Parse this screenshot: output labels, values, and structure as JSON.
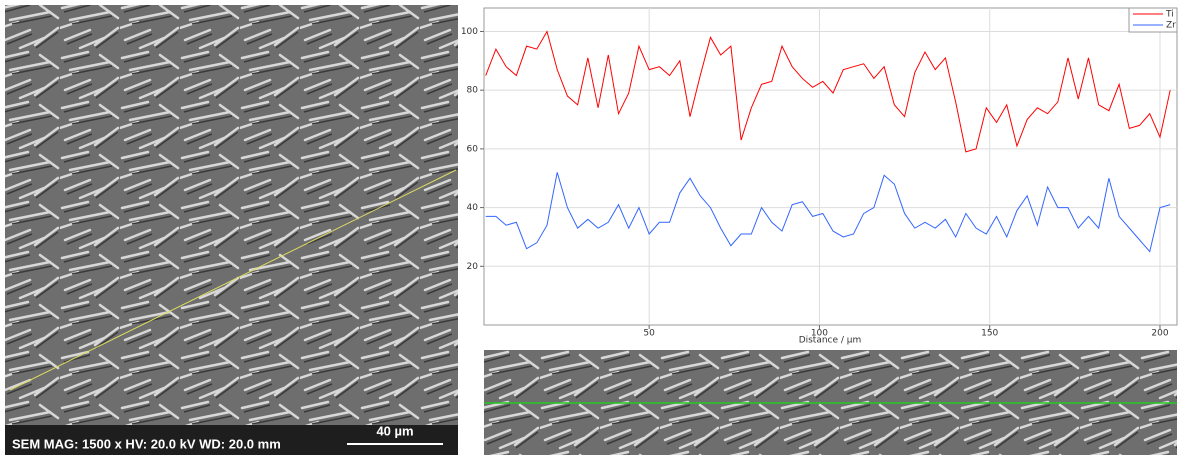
{
  "sem_image": {
    "info": "SEM  MAG: 1500 x  HV: 20.0 kV  WD: 20.0 mm",
    "scale_bar": "40 µm"
  },
  "chart_data": {
    "type": "line",
    "x_label": "Distance / µm",
    "x": [
      2,
      5,
      8,
      11,
      14,
      17,
      20,
      23,
      26,
      29,
      32,
      35,
      38,
      41,
      44,
      47,
      50,
      53,
      56,
      59,
      62,
      65,
      68,
      71,
      74,
      77,
      80,
      83,
      86,
      89,
      92,
      95,
      98,
      101,
      104,
      107,
      110,
      113,
      116,
      119,
      122,
      125,
      128,
      131,
      134,
      137,
      140,
      143,
      146,
      149,
      152,
      155,
      158,
      161,
      164,
      167,
      170,
      173,
      176,
      179,
      182,
      185,
      188,
      191,
      194,
      197,
      200,
      203
    ],
    "series": [
      {
        "name": "Ti",
        "color": "#ff0000",
        "values": [
          85,
          94,
          88,
          85,
          95,
          94,
          100,
          87,
          78,
          75,
          91,
          74,
          92,
          72,
          79,
          95,
          87,
          88,
          85,
          90,
          71,
          85,
          98,
          92,
          95,
          63,
          74,
          82,
          83,
          95,
          88,
          84,
          81,
          83,
          79,
          87,
          88,
          89,
          84,
          88,
          75,
          71,
          86,
          93,
          87,
          91,
          76,
          59,
          60,
          74,
          69,
          75,
          61,
          70,
          74,
          72,
          76,
          91,
          77,
          91,
          75,
          73,
          82,
          67,
          68,
          72,
          64,
          80
        ]
      },
      {
        "name": "Zr",
        "color": "#3366ff",
        "values": [
          37,
          37,
          34,
          35,
          26,
          28,
          34,
          52,
          40,
          33,
          36,
          33,
          35,
          41,
          33,
          40,
          31,
          35,
          35,
          45,
          50,
          44,
          40,
          33,
          27,
          31,
          31,
          40,
          35,
          32,
          41,
          42,
          37,
          38,
          32,
          30,
          31,
          38,
          40,
          51,
          48,
          38,
          33,
          35,
          33,
          36,
          30,
          38,
          33,
          31,
          37,
          30,
          39,
          44,
          34,
          47,
          40,
          40,
          33,
          37,
          33,
          50,
          37,
          33,
          29,
          25,
          40,
          41
        ]
      }
    ],
    "xlim": [
      1.5,
      205
    ],
    "ylim": [
      0,
      108
    ],
    "xticks": [
      50,
      100,
      150,
      200
    ],
    "yticks": [
      20,
      40,
      60,
      80,
      100
    ],
    "grid": true,
    "legend": "top-right"
  }
}
